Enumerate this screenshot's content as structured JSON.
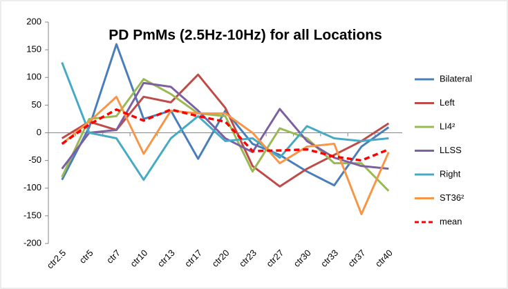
{
  "chart_data": {
    "type": "line",
    "title": "PD PmMs (2.5Hz-10Hz) for all Locations",
    "categories": [
      "ctr2.5",
      "ctr5",
      "ctr7",
      "ctr10",
      "ctr13",
      "ctr17",
      "ctr20",
      "ctr23",
      "ctr27",
      "ctr30",
      "ctr33",
      "ctr37",
      "ctr40"
    ],
    "series": [
      {
        "name": "Bilateral",
        "color": "#4a7ebb",
        "values": [
          -85,
          10,
          160,
          25,
          40,
          -47,
          40,
          -20,
          -40,
          -70,
          -95,
          -25,
          10
        ]
      },
      {
        "name": "Left",
        "color": "#be4b48",
        "values": [
          -10,
          20,
          5,
          65,
          55,
          105,
          45,
          -60,
          -97,
          -65,
          -40,
          -15,
          17
        ]
      },
      {
        "name": "LI4²",
        "color": "#98b954",
        "values": [
          -80,
          25,
          30,
          97,
          70,
          35,
          30,
          -70,
          8,
          -10,
          -55,
          -55,
          -105
        ]
      },
      {
        "name": "LLSS",
        "color": "#7d60a0",
        "values": [
          -65,
          0,
          5,
          90,
          83,
          40,
          -10,
          -35,
          43,
          -15,
          -45,
          -60,
          -65
        ]
      },
      {
        "name": "Right",
        "color": "#46aac5",
        "values": [
          127,
          0,
          -10,
          -85,
          -10,
          30,
          -15,
          -10,
          -45,
          12,
          -10,
          -15,
          -10
        ]
      },
      {
        "name": "ST36²",
        "color": "#f79646",
        "values": [
          -20,
          20,
          65,
          -38,
          40,
          35,
          35,
          0,
          -55,
          -25,
          -20,
          -147,
          -35
        ]
      },
      {
        "name": "mean",
        "color": "#ff0000",
        "style": "dashed",
        "values": [
          -20,
          15,
          42,
          22,
          42,
          30,
          20,
          -33,
          -32,
          -30,
          -43,
          -50,
          -30
        ]
      }
    ],
    "ylim": [
      -200,
      200
    ],
    "yticks": [
      -200,
      -150,
      -100,
      -50,
      0,
      50,
      100,
      150,
      200
    ],
    "legend": "right"
  }
}
